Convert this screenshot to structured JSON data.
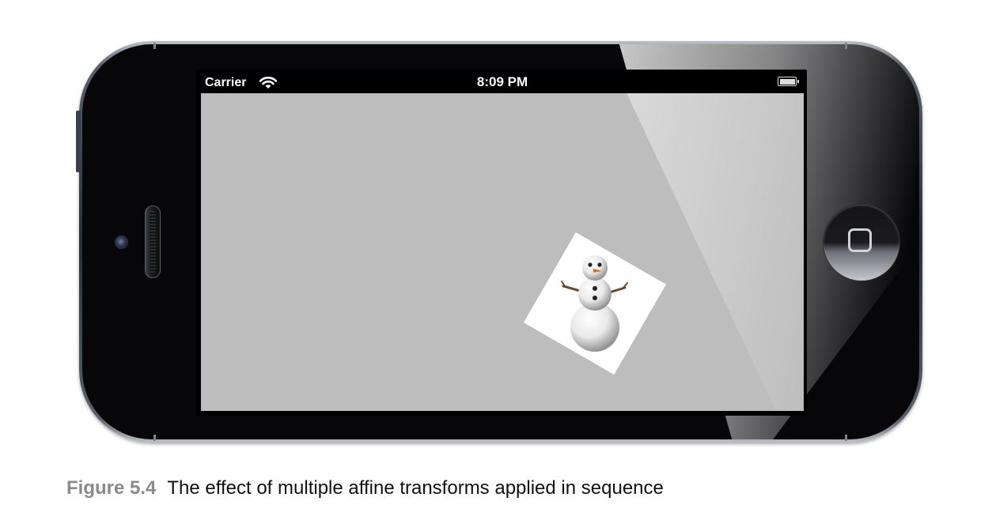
{
  "status_bar": {
    "carrier": "Carrier",
    "time": "8:09 PM",
    "wifi_icon": "wifi-icon",
    "battery_icon": "battery-icon"
  },
  "screen": {
    "background_color": "#bdbdbd",
    "content": "snowman-image"
  },
  "device": {
    "home_button_icon": "home-square-icon"
  },
  "caption": {
    "label": "Figure 5.4",
    "text": "The effect of multiple affine transforms applied in sequence"
  }
}
